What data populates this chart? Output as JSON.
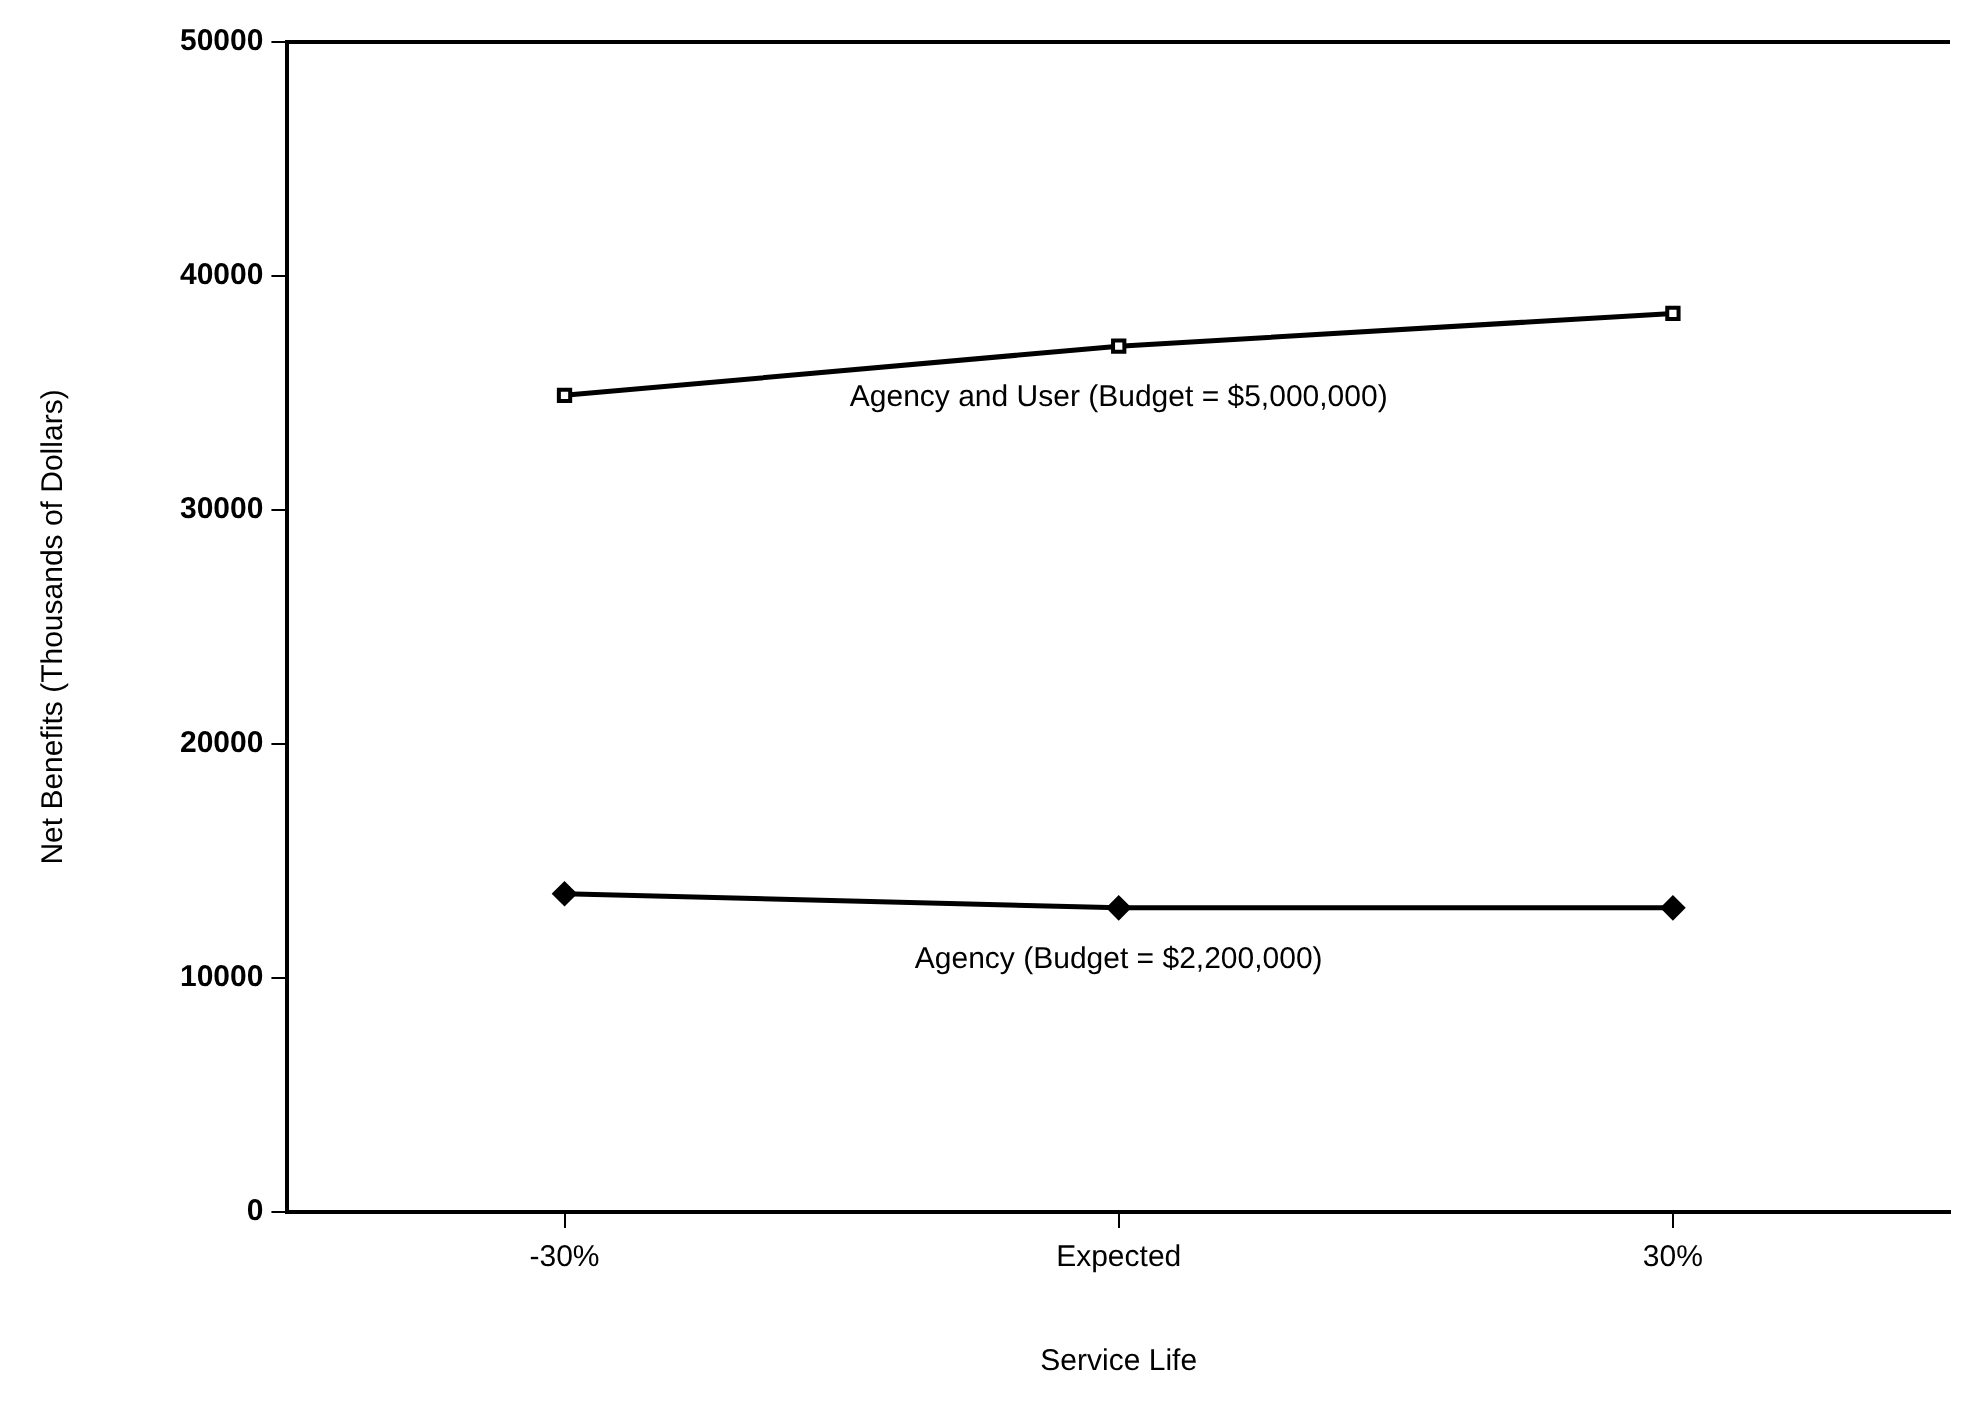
{
  "chart_data": {
    "type": "line",
    "xlabel": "Service Life",
    "ylabel": "Net Benefits (Thousands of Dollars)",
    "categories": [
      "-30%",
      "Expected",
      "30%"
    ],
    "ylim": [
      0,
      50000
    ],
    "yticks": [
      0,
      10000,
      20000,
      30000,
      40000,
      50000
    ],
    "grid": false,
    "legend": false,
    "series": [
      {
        "name": "Agency and User (Budget = $5,000,000)",
        "color": "#000000",
        "marker": "square",
        "values": [
          34900,
          37000,
          38400
        ]
      },
      {
        "name": "Agency (Budget = $2,200,000)",
        "color": "#000000",
        "marker": "diamond",
        "values": [
          13600,
          13000,
          13000
        ]
      }
    ]
  }
}
